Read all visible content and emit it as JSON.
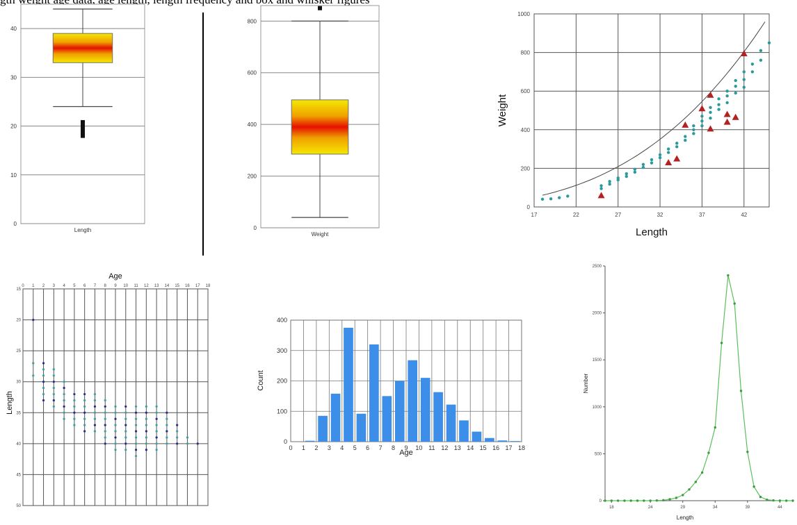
{
  "caption_fragment": "gth weight age data, age length, length frequency and box and whisker figures",
  "chart_data": [
    {
      "type": "box",
      "xlabel": "Length",
      "yticks": [
        "0",
        "10",
        "20",
        "30",
        "40"
      ],
      "ylim": [
        0,
        45
      ],
      "box": {
        "whisker_low": 24,
        "q1": 33,
        "median": 36,
        "q3": 39,
        "whisker_high": 44
      },
      "outliers": [
        18,
        18.7,
        19.4,
        20.1,
        20.8
      ],
      "colors": {
        "fill_edge": "#f3e200",
        "fill_mid": "#f0a000",
        "median": "#e00000",
        "border": "#707070"
      }
    },
    {
      "type": "box",
      "xlabel": "Weight",
      "yticks": [
        "0",
        "200",
        "400",
        "600",
        "800"
      ],
      "ylim": [
        0,
        860
      ],
      "box": {
        "whisker_low": 40,
        "q1": 285,
        "median": 390,
        "q3": 495,
        "whisker_high": 800
      },
      "outliers": [
        850
      ],
      "colors": {
        "fill_edge": "#f3e200",
        "fill_mid": "#f0a000",
        "median": "#e00000",
        "border": "#707070"
      }
    },
    {
      "type": "scatter",
      "xlabel": "Length",
      "ylabel": "Weight",
      "xticks": [
        "17",
        "22",
        "27",
        "32",
        "37",
        "42"
      ],
      "yticks": [
        "0",
        "200",
        "400",
        "600",
        "800",
        "1000"
      ],
      "xlim": [
        17,
        45
      ],
      "ylim": [
        0,
        1000
      ],
      "fit": {
        "a": 0.009,
        "b": 3.05
      },
      "points": [
        [
          18,
          40
        ],
        [
          19,
          42
        ],
        [
          20,
          48
        ],
        [
          21,
          56
        ],
        [
          25,
          95
        ],
        [
          25,
          110
        ],
        [
          26,
          118
        ],
        [
          26,
          132
        ],
        [
          27,
          140
        ],
        [
          27,
          150
        ],
        [
          28,
          158
        ],
        [
          28,
          172
        ],
        [
          29,
          180
        ],
        [
          29,
          195
        ],
        [
          30,
          205
        ],
        [
          30,
          220
        ],
        [
          31,
          228
        ],
        [
          31,
          245
        ],
        [
          32,
          255
        ],
        [
          32,
          270
        ],
        [
          33,
          282
        ],
        [
          33,
          300
        ],
        [
          34,
          312
        ],
        [
          34,
          330
        ],
        [
          35,
          345
        ],
        [
          35,
          365
        ],
        [
          36,
          380
        ],
        [
          36,
          400
        ],
        [
          36,
          420
        ],
        [
          37,
          420
        ],
        [
          37,
          445
        ],
        [
          37,
          470
        ],
        [
          38,
          460
        ],
        [
          38,
          490
        ],
        [
          38,
          515
        ],
        [
          39,
          505
        ],
        [
          39,
          530
        ],
        [
          39,
          560
        ],
        [
          40,
          540
        ],
        [
          40,
          575
        ],
        [
          40,
          600
        ],
        [
          41,
          590
        ],
        [
          41,
          625
        ],
        [
          41,
          655
        ],
        [
          42,
          620
        ],
        [
          42,
          660
        ],
        [
          42,
          700
        ],
        [
          43,
          700
        ],
        [
          43,
          740
        ],
        [
          44,
          810
        ],
        [
          44,
          760
        ],
        [
          45,
          850
        ]
      ],
      "red_points": [
        [
          25,
          60
        ],
        [
          33,
          230
        ],
        [
          34,
          250
        ],
        [
          35,
          425
        ],
        [
          37,
          510
        ],
        [
          38,
          580
        ],
        [
          38,
          405
        ],
        [
          40,
          440
        ],
        [
          40,
          480
        ],
        [
          41,
          465
        ],
        [
          42,
          795
        ]
      ],
      "colors": {
        "points": "#2a9a9a",
        "red": "#b22222",
        "fit": "#444444",
        "grid": "#555555"
      }
    },
    {
      "type": "scatter",
      "title": "Age",
      "ylabel": "Length",
      "xticks": [
        "0",
        "1",
        "2",
        "3",
        "4",
        "5",
        "6",
        "7",
        "8",
        "9",
        "10",
        "11",
        "12",
        "13",
        "14",
        "15",
        "16",
        "17",
        "18"
      ],
      "yticks": [
        "15",
        "20",
        "25",
        "30",
        "35",
        "40",
        "45",
        "50"
      ],
      "xlim": [
        0,
        18
      ],
      "ylim": [
        15,
        50
      ],
      "points": [
        [
          1,
          20
        ],
        [
          1,
          27
        ],
        [
          1,
          29
        ],
        [
          2,
          27
        ],
        [
          2,
          28
        ],
        [
          2,
          29
        ],
        [
          2,
          30
        ],
        [
          2,
          31
        ],
        [
          2,
          32
        ],
        [
          2,
          33
        ],
        [
          3,
          28
        ],
        [
          3,
          29
        ],
        [
          3,
          30
        ],
        [
          3,
          31
        ],
        [
          3,
          32
        ],
        [
          3,
          33
        ],
        [
          3,
          34
        ],
        [
          4,
          30
        ],
        [
          4,
          31
        ],
        [
          4,
          32
        ],
        [
          4,
          33
        ],
        [
          4,
          34
        ],
        [
          4,
          35
        ],
        [
          4,
          36
        ],
        [
          5,
          32
        ],
        [
          5,
          33
        ],
        [
          5,
          34
        ],
        [
          5,
          35
        ],
        [
          5,
          36
        ],
        [
          5,
          37
        ],
        [
          6,
          32
        ],
        [
          6,
          33
        ],
        [
          6,
          34
        ],
        [
          6,
          35
        ],
        [
          6,
          36
        ],
        [
          6,
          37
        ],
        [
          6,
          38
        ],
        [
          7,
          32
        ],
        [
          7,
          33
        ],
        [
          7,
          34
        ],
        [
          7,
          35
        ],
        [
          7,
          36
        ],
        [
          7,
          37
        ],
        [
          7,
          38
        ],
        [
          8,
          33
        ],
        [
          8,
          34
        ],
        [
          8,
          35
        ],
        [
          8,
          36
        ],
        [
          8,
          37
        ],
        [
          8,
          38
        ],
        [
          8,
          39
        ],
        [
          8,
          40
        ],
        [
          9,
          34
        ],
        [
          9,
          35
        ],
        [
          9,
          36
        ],
        [
          9,
          37
        ],
        [
          9,
          38
        ],
        [
          9,
          39
        ],
        [
          9,
          40
        ],
        [
          9,
          41
        ],
        [
          10,
          34
        ],
        [
          10,
          35
        ],
        [
          10,
          36
        ],
        [
          10,
          37
        ],
        [
          10,
          38
        ],
        [
          10,
          39
        ],
        [
          10,
          40
        ],
        [
          10,
          41
        ],
        [
          11,
          34
        ],
        [
          11,
          35
        ],
        [
          11,
          36
        ],
        [
          11,
          37
        ],
        [
          11,
          38
        ],
        [
          11,
          39
        ],
        [
          11,
          40
        ],
        [
          11,
          41
        ],
        [
          11,
          42
        ],
        [
          12,
          34
        ],
        [
          12,
          35
        ],
        [
          12,
          36
        ],
        [
          12,
          37
        ],
        [
          12,
          38
        ],
        [
          12,
          39
        ],
        [
          12,
          40
        ],
        [
          12,
          41
        ],
        [
          13,
          34
        ],
        [
          13,
          35
        ],
        [
          13,
          36
        ],
        [
          13,
          37
        ],
        [
          13,
          38
        ],
        [
          13,
          39
        ],
        [
          13,
          40
        ],
        [
          13,
          41
        ],
        [
          14,
          35
        ],
        [
          14,
          36
        ],
        [
          14,
          37
        ],
        [
          14,
          38
        ],
        [
          14,
          39
        ],
        [
          14,
          40
        ],
        [
          15,
          37
        ],
        [
          15,
          38
        ],
        [
          15,
          39
        ],
        [
          15,
          40
        ],
        [
          16,
          39
        ],
        [
          16,
          40
        ],
        [
          17,
          40
        ]
      ],
      "colors": {
        "points": "#3aa0a0",
        "dark": "#2a2a8a",
        "grid": "#555555"
      }
    },
    {
      "type": "bar",
      "xlabel": "Age",
      "ylabel": "Count",
      "categories": [
        "1",
        "2",
        "3",
        "4",
        "5",
        "6",
        "7",
        "8",
        "9",
        "10",
        "11",
        "12",
        "13",
        "14",
        "15",
        "16",
        "17"
      ],
      "values": [
        3,
        85,
        158,
        375,
        92,
        320,
        150,
        200,
        268,
        210,
        163,
        122,
        70,
        33,
        12,
        4,
        2
      ],
      "xticks": [
        "0",
        "1",
        "2",
        "3",
        "4",
        "5",
        "6",
        "7",
        "8",
        "9",
        "10",
        "11",
        "12",
        "13",
        "14",
        "15",
        "16",
        "17",
        "18"
      ],
      "yticks": [
        "0",
        "100",
        "200",
        "300",
        "400"
      ],
      "ylim": [
        0,
        400
      ],
      "colors": {
        "bar": "#3d8ee8",
        "grid": "#777777"
      }
    },
    {
      "type": "line",
      "xlabel": "Length",
      "ylabel": "Number",
      "xticks": [
        "18",
        "24",
        "29",
        "34",
        "39",
        "44"
      ],
      "yticks": [
        "0",
        "500",
        "1000",
        "1500",
        "2000",
        "2500"
      ],
      "xlim": [
        17,
        46
      ],
      "ylim": [
        0,
        2500
      ],
      "x": [
        17,
        18,
        19,
        20,
        21,
        22,
        23,
        24,
        25,
        26,
        27,
        28,
        29,
        30,
        31,
        32,
        33,
        34,
        35,
        36,
        37,
        38,
        39,
        40,
        41,
        42,
        43,
        44,
        45,
        46
      ],
      "y": [
        0,
        0,
        0,
        0,
        0,
        0,
        0,
        0,
        2,
        5,
        15,
        30,
        60,
        120,
        200,
        300,
        510,
        780,
        1680,
        2400,
        2100,
        1170,
        520,
        150,
        40,
        10,
        3,
        1,
        0,
        0
      ],
      "colors": {
        "line": "#5bbf5b",
        "point": "#3c9c3c",
        "axis": "#555555"
      }
    }
  ]
}
